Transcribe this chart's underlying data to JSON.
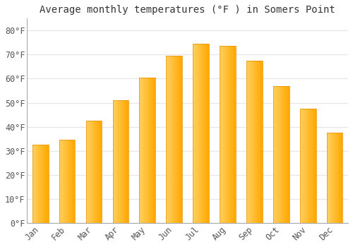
{
  "title": "Average monthly temperatures (°F ) in Somers Point",
  "months": [
    "Jan",
    "Feb",
    "Mar",
    "Apr",
    "May",
    "Jun",
    "Jul",
    "Aug",
    "Sep",
    "Oct",
    "Nov",
    "Dec"
  ],
  "values": [
    32.5,
    34.5,
    42.5,
    51.0,
    60.5,
    69.5,
    74.5,
    73.5,
    67.5,
    57.0,
    47.5,
    37.5
  ],
  "bar_color_left": "#FFD060",
  "bar_color_right": "#FFA800",
  "bar_edge_color": "#E89000",
  "background_color": "#FFFFFF",
  "grid_color": "#E8E8E8",
  "ylim": [
    0,
    85
  ],
  "yticks": [
    0,
    10,
    20,
    30,
    40,
    50,
    60,
    70,
    80
  ],
  "ytick_labels": [
    "0°F",
    "10°F",
    "20°F",
    "30°F",
    "40°F",
    "50°F",
    "60°F",
    "70°F",
    "80°F"
  ],
  "title_fontsize": 10,
  "tick_fontsize": 8.5,
  "font_family": "monospace",
  "bar_width": 0.6,
  "figsize": [
    5.0,
    3.5
  ],
  "dpi": 100
}
